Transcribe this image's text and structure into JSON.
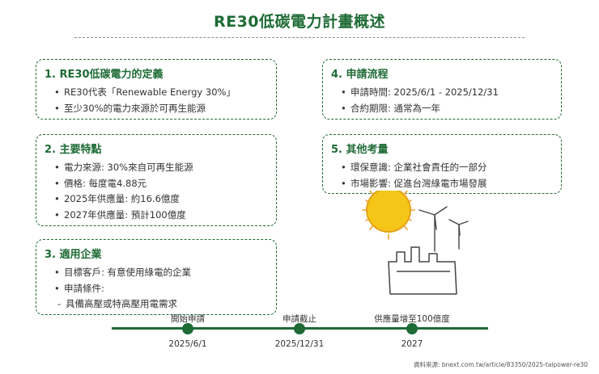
{
  "title": "RE30低碳電力計畫概述",
  "cards": {
    "definition": {
      "heading": "1. RE30低碳電力的定義",
      "items": [
        "RE30代表「Renewable Energy 30%」",
        "至少30%的電力來源於可再生能源"
      ]
    },
    "features": {
      "heading": "2. 主要特點",
      "items": [
        "電力來源: 30%來自可再生能源",
        "價格: 每度電4.88元",
        "2025年供應量: 約16.6億度",
        "2027年供應量: 預計100億度"
      ]
    },
    "applicable": {
      "heading": "3. 適用企業",
      "items": [
        "目標客戶: 有意使用綠電的企業",
        "申請條件:"
      ],
      "sub_item": "具備高壓或特高壓用電需求"
    },
    "process": {
      "heading": "4. 申請流程",
      "items": [
        "申請時間: 2025/6/1 - 2025/12/31",
        "合約期限: 通常為一年"
      ]
    },
    "other": {
      "heading": "5. 其他考量",
      "items": [
        "環保意識: 企業社會責任的一部分",
        "市場影響: 促進台灣綠電市場發展"
      ]
    }
  },
  "timeline": [
    {
      "label": "開始申請",
      "date": "2025/6/1"
    },
    {
      "label": "申請截止",
      "date": "2025/12/31"
    },
    {
      "label": "供應量增至100億度",
      "date": "2027"
    }
  ],
  "source": "資料來源: bnext.com.tw/article/83350/2025-taipower-re30",
  "colors": {
    "accent": "#1e6b35",
    "sun": "#f5c518",
    "sun_rays": "#f0a030"
  },
  "icons": [
    "sun-icon",
    "wind-turbine-icon",
    "factory-icon"
  ]
}
